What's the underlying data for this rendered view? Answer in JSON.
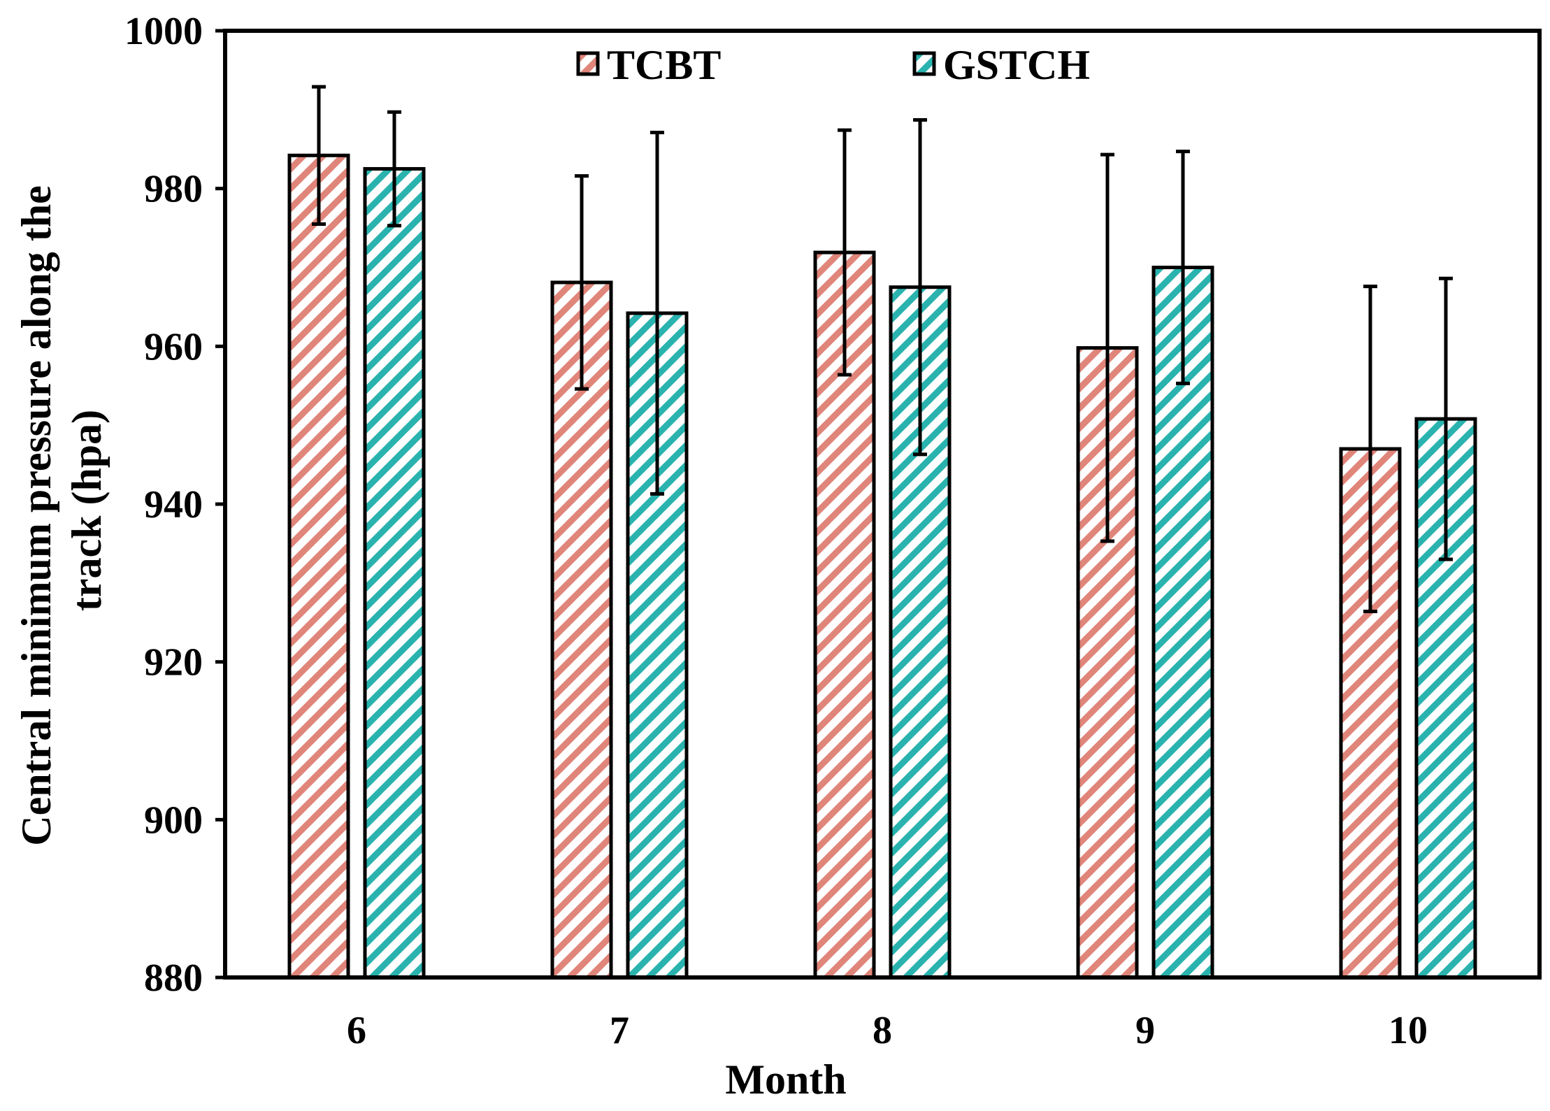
{
  "chart_data": {
    "type": "bar",
    "title": "",
    "xlabel": "Month",
    "ylabel_lines": [
      "Central minimum pressure along the",
      "track (hpa)"
    ],
    "categories": [
      "6",
      "7",
      "8",
      "9",
      "10"
    ],
    "ylim": [
      880,
      1000
    ],
    "yticks": [
      "880",
      "900",
      "920",
      "940",
      "960",
      "980",
      "1000"
    ],
    "legend_position": "top-center",
    "series": [
      {
        "name": "TCBT",
        "color": "#e0857a",
        "values": [
          984.2,
          968.1,
          971.9,
          959.8,
          947.0
        ],
        "errors": [
          8.7,
          13.5,
          15.5,
          24.5,
          20.6
        ]
      },
      {
        "name": "GSTCH",
        "color": "#2ab3ae",
        "values": [
          982.5,
          964.2,
          967.5,
          970.0,
          950.8
        ],
        "errors": [
          7.2,
          22.9,
          21.2,
          14.7,
          17.8
        ]
      }
    ]
  }
}
